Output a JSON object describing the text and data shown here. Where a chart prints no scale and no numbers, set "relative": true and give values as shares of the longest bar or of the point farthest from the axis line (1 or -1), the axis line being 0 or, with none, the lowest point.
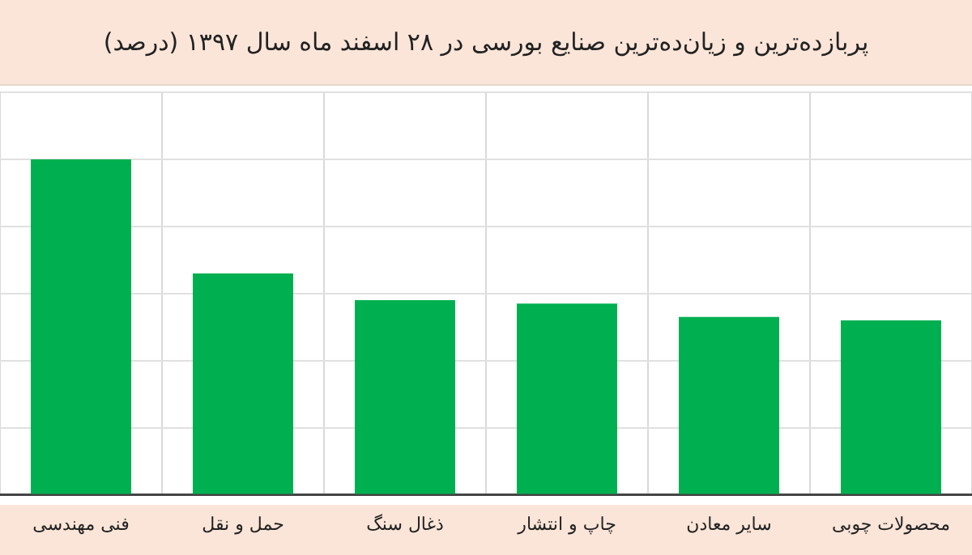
{
  "chart_data": {
    "type": "bar",
    "title": "پربازده‌ترین و زیان‌ده‌ترین صنایع بورسی در ۲۸ اسفند ماه سال ۱۳۹۷ (درصد)",
    "categories": [
      "فنی مهندسی",
      "حمل و نقل",
      "ذغال سنگ",
      "چاپ و انتشار",
      "سایر معادن",
      "محصولات چوبی"
    ],
    "values": [
      1,
      0.66,
      0.58,
      0.57,
      0.53,
      0.52
    ],
    "color": "#00b050",
    "relative": true,
    "grid": true
  }
}
